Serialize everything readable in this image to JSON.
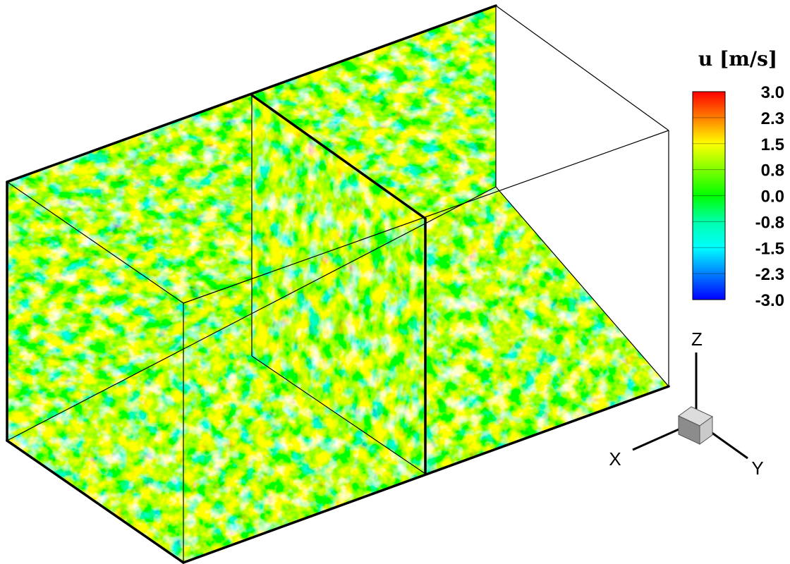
{
  "legend": {
    "title": "u [m/s]",
    "ticks": [
      "3.0",
      "2.3",
      "1.5",
      "0.8",
      "0.0",
      "-0.8",
      "-1.5",
      "-2.3",
      "-3.0"
    ],
    "min": -3.0,
    "max": 3.0,
    "colors": [
      "#ff0000",
      "#ff7f00",
      "#ffff00",
      "#7fff00",
      "#00ff00",
      "#00ffaa",
      "#00ffff",
      "#0080ff",
      "#0000ff"
    ]
  },
  "axes": {
    "x": "X",
    "y": "Y",
    "z": "Z"
  },
  "colors": {
    "edge": "#000000",
    "cube_top": "#dcdcdc",
    "cube_front": "#9a9a9a",
    "cube_side": "#c8c8c8"
  }
}
